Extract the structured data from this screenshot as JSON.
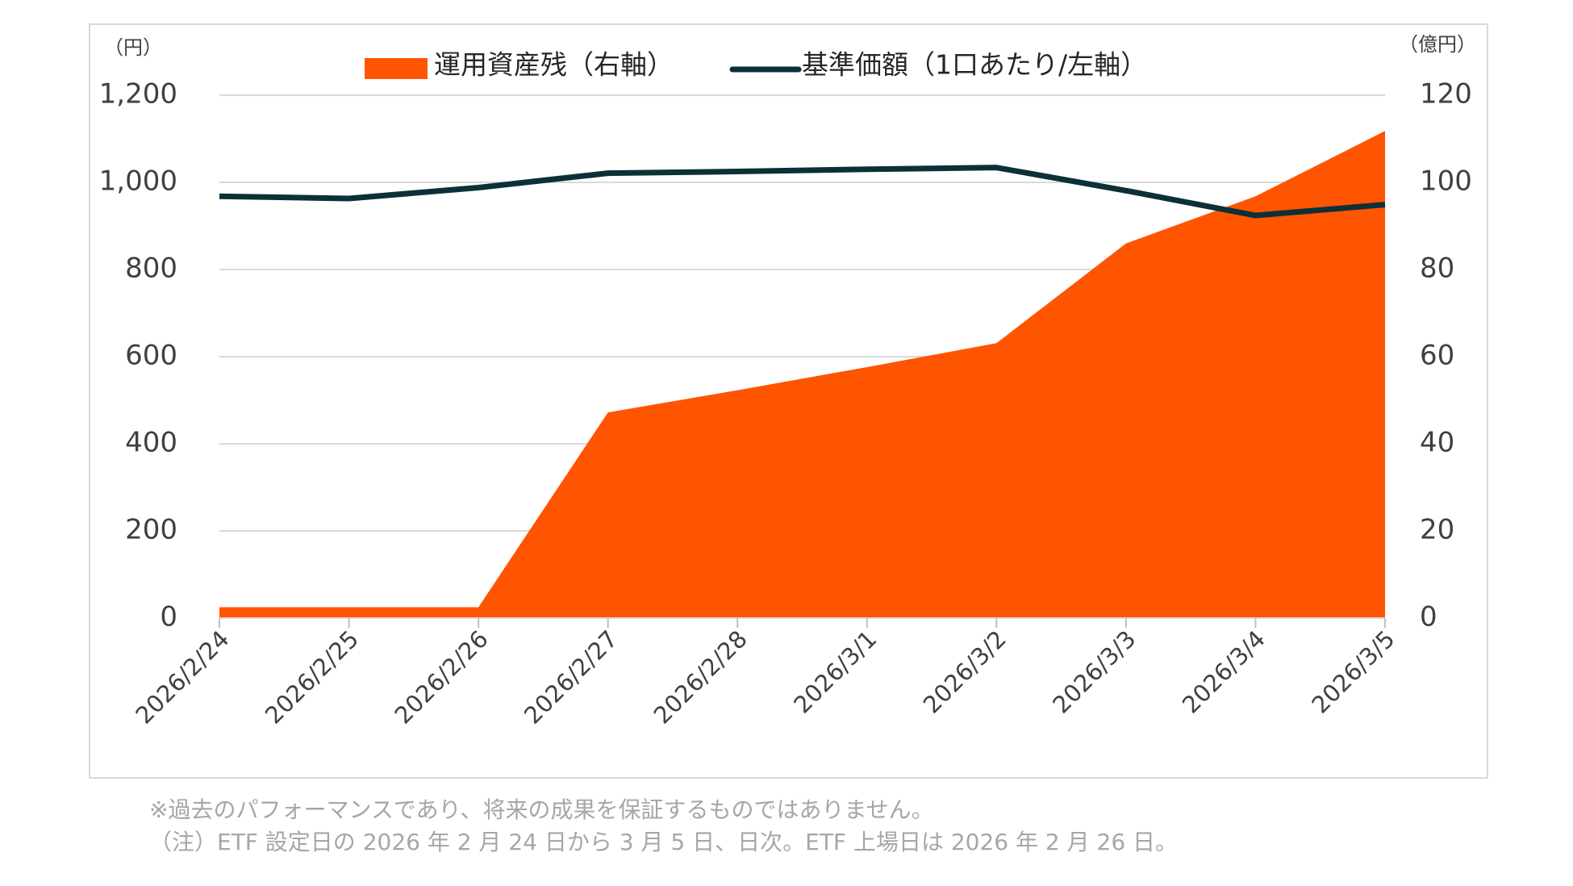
{
  "chart_data": {
    "type": "area-line",
    "y_unit_label": "（円）",
    "y2_unit_label": "（億円）",
    "categories": [
      "2026/2/24",
      "2026/2/25",
      "2026/2/26",
      "2026/2/27",
      "2026/2/28",
      "2026/3/1",
      "2026/3/2",
      "2026/3/3",
      "2026/3/4",
      "2026/3/5"
    ],
    "series": [
      {
        "name": "運用資産残（右軸）",
        "kind": "area",
        "axis": "y2",
        "color": "#ff5500",
        "values": [
          2.5,
          2.5,
          2.5,
          47.2,
          52.3,
          57.6,
          63.1,
          86,
          96.8,
          111.8
        ]
      },
      {
        "name": "基準価額（1口あたり/左軸）",
        "kind": "line",
        "axis": "y",
        "color": "#0d3038",
        "values": [
          968,
          963,
          988,
          1021,
          1025,
          1030,
          1034,
          981,
          924,
          949
        ]
      }
    ],
    "ylim": [
      0,
      1200
    ],
    "yticks": [
      0,
      200,
      400,
      600,
      800,
      {
        "value": 1000,
        "label": "1,000"
      },
      {
        "value": 1200,
        "label": "1,200"
      }
    ],
    "y2lim": [
      0,
      120
    ],
    "y2ticks": [
      0,
      20,
      40,
      60,
      80,
      100,
      120
    ],
    "grid": true
  },
  "notes": [
    "※過去のパフォーマンスであり、将来の成果を保証するものではありません。",
    "（注）ETF 設定日の 2026 年 2 月 24 日から 3 月 5 日、日次。ETF 上場日は 2026 年 2 月 26 日。"
  ]
}
